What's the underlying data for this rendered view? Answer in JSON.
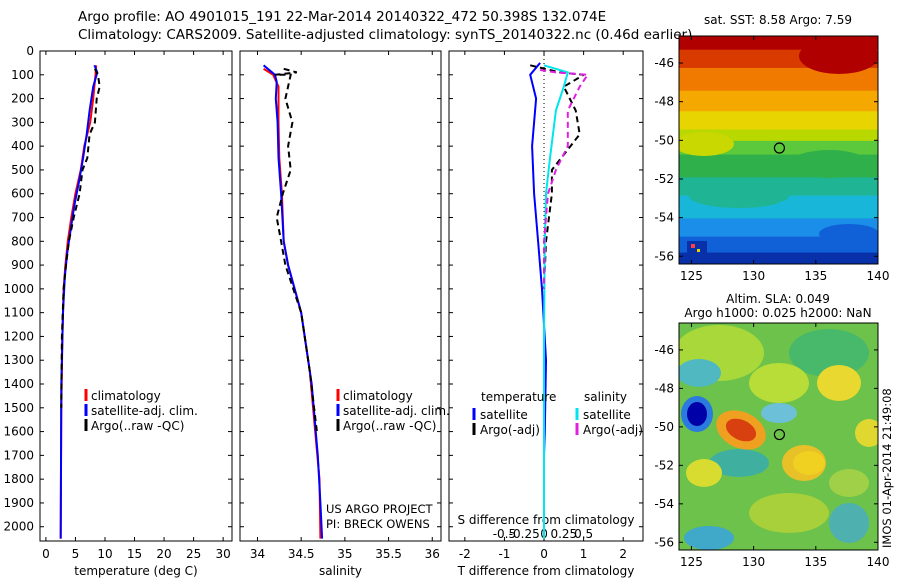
{
  "header": {
    "line1": "Argo profile: AO 4901015_191 22-Mar-2014 20140322_472 50.398S 132.074E",
    "line2": "Climatology: CARS2009. Satellite-adjusted climatology: synTS_20140322.nc (0.46d earlier)"
  },
  "colors": {
    "climatology": "#ff0000",
    "satellite": "#0000ff",
    "argo": "#000000",
    "sal_satellite": "#00e5ee",
    "sal_argo": "#e020e0"
  },
  "depth_ticks": [
    0,
    100,
    200,
    300,
    400,
    500,
    600,
    700,
    800,
    900,
    1000,
    1100,
    1200,
    1300,
    1400,
    1500,
    1600,
    1700,
    1800,
    1900,
    2000
  ],
  "chart_data": [
    {
      "type": "line",
      "xlabel": "temperature (deg C)",
      "xticks": [
        0,
        5,
        10,
        15,
        20,
        25,
        30
      ],
      "xlim": [
        -1,
        31.5
      ],
      "ylim": [
        2060,
        0
      ],
      "legend": [
        "climatology",
        "satellite-adj. clim.",
        "Argo(..raw -QC)"
      ],
      "series": [
        {
          "name": "climatology",
          "color": "#ff0000",
          "points": [
            [
              8.5,
              60
            ],
            [
              8.4,
              100
            ],
            [
              8.0,
              200
            ],
            [
              7.5,
              300
            ],
            [
              6.5,
              400
            ],
            [
              5.9,
              500
            ],
            [
              5.0,
              600
            ],
            [
              4.3,
              700
            ],
            [
              3.7,
              800
            ],
            [
              3.3,
              900
            ],
            [
              3.0,
              1000
            ],
            [
              2.8,
              1200
            ],
            [
              2.6,
              1500
            ],
            [
              2.5,
              2050
            ]
          ]
        },
        {
          "name": "satellite-adj. clim.",
          "color": "#0000ff",
          "points": [
            [
              8.2,
              60
            ],
            [
              8.7,
              90
            ],
            [
              8.0,
              150
            ],
            [
              7.4,
              250
            ],
            [
              6.9,
              350
            ],
            [
              6.3,
              450
            ],
            [
              5.6,
              550
            ],
            [
              4.8,
              650
            ],
            [
              4.2,
              750
            ],
            [
              3.6,
              850
            ],
            [
              3.2,
              950
            ],
            [
              2.9,
              1100
            ],
            [
              2.6,
              1400
            ],
            [
              2.5,
              2050
            ]
          ]
        },
        {
          "name": "Argo(..raw -QC)",
          "color": "#000000",
          "dash": true,
          "points": [
            [
              8.3,
              75
            ],
            [
              8.8,
              100
            ],
            [
              9.1,
              150
            ],
            [
              8.6,
              200
            ],
            [
              8.3,
              300
            ],
            [
              7.4,
              350
            ],
            [
              7.0,
              450
            ],
            [
              6.2,
              500
            ],
            [
              5.7,
              600
            ],
            [
              4.7,
              700
            ],
            [
              3.9,
              800
            ],
            [
              3.4,
              900
            ],
            [
              3.0,
              1000
            ],
            [
              2.7,
              1200
            ],
            [
              2.6,
              1500
            ]
          ]
        }
      ]
    },
    {
      "type": "line",
      "xlabel": "salinity",
      "xticks": [
        34,
        34.5,
        35,
        35.5,
        36
      ],
      "xlim": [
        33.8,
        36.1
      ],
      "ylim": [
        2060,
        0
      ],
      "legend": [
        "climatology",
        "satellite-adj. clim.",
        "Argo(..raw -QC)"
      ],
      "annotations": [
        "US ARGO PROJECT",
        "PI: BRECK OWENS"
      ],
      "series": [
        {
          "name": "climatology",
          "color": "#ff0000",
          "points": [
            [
              34.07,
              75
            ],
            [
              34.18,
              100
            ],
            [
              34.24,
              150
            ],
            [
              34.24,
              300
            ],
            [
              34.25,
              450
            ],
            [
              34.28,
              600
            ],
            [
              34.3,
              800
            ],
            [
              34.35,
              900
            ],
            [
              34.5,
              1100
            ],
            [
              34.6,
              1350
            ],
            [
              34.66,
              1600
            ],
            [
              34.71,
              1800
            ],
            [
              34.72,
              2050
            ]
          ]
        },
        {
          "name": "satellite-adj. clim.",
          "color": "#0000ff",
          "points": [
            [
              34.07,
              60
            ],
            [
              34.2,
              100
            ],
            [
              34.22,
              130
            ],
            [
              34.21,
              200
            ],
            [
              34.23,
              300
            ],
            [
              34.24,
              450
            ],
            [
              34.27,
              600
            ],
            [
              34.3,
              800
            ],
            [
              34.35,
              900
            ],
            [
              34.5,
              1100
            ],
            [
              34.62,
              1400
            ],
            [
              34.69,
              1700
            ],
            [
              34.72,
              1900
            ],
            [
              34.74,
              2050
            ]
          ]
        },
        {
          "name": "Argo(..raw -QC)",
          "color": "#000000",
          "dash": true,
          "points": [
            [
              34.3,
              75
            ],
            [
              34.45,
              90
            ],
            [
              34.2,
              100
            ],
            [
              34.38,
              100
            ],
            [
              34.32,
              200
            ],
            [
              34.4,
              300
            ],
            [
              34.35,
              400
            ],
            [
              34.38,
              500
            ],
            [
              34.29,
              600
            ],
            [
              34.22,
              700
            ],
            [
              34.27,
              800
            ],
            [
              34.32,
              900
            ],
            [
              34.5,
              1100
            ],
            [
              34.6,
              1350
            ],
            [
              34.68,
              1600
            ]
          ]
        }
      ]
    },
    {
      "type": "line",
      "xlabel": "T difference from climatology",
      "xticks": [
        -2,
        -1,
        0,
        1,
        2
      ],
      "xlim": [
        -2.4,
        2.5
      ],
      "top_axis_label": "S difference from climatology",
      "top_xticks": [
        "-0.5",
        "-0.25",
        "0",
        "0.25",
        "0.5"
      ],
      "ylim": [
        2060,
        0
      ],
      "legend": [
        "temperature",
        "satellite",
        "Argo(-adj)",
        "salinity",
        "satellite",
        "Argo(-adj)"
      ],
      "series": [
        {
          "name": "satellite",
          "group": "temperature",
          "color": "#0000ff",
          "points": [
            [
              -0.1,
              50
            ],
            [
              -0.35,
              100
            ],
            [
              -0.2,
              200
            ],
            [
              -0.3,
              400
            ],
            [
              -0.25,
              600
            ],
            [
              -0.15,
              800
            ],
            [
              -0.05,
              1000
            ],
            [
              0.05,
              1300
            ],
            [
              0.02,
              1600
            ],
            [
              0.0,
              1700
            ]
          ]
        },
        {
          "name": "Argo(-adj)",
          "group": "temperature",
          "color": "#000000",
          "dash": true,
          "points": [
            [
              -0.35,
              60
            ],
            [
              0.4,
              90
            ],
            [
              1.0,
              100
            ],
            [
              0.5,
              150
            ],
            [
              0.8,
              250
            ],
            [
              0.9,
              350
            ],
            [
              0.2,
              500
            ],
            [
              0.2,
              600
            ],
            [
              0.05,
              800
            ],
            [
              0.0,
              1000
            ]
          ]
        },
        {
          "name": "satellite",
          "group": "salinity",
          "color": "#00e5ee",
          "points": [
            [
              0.0,
              60
            ],
            [
              0.6,
              90
            ],
            [
              0.5,
              150
            ],
            [
              0.3,
              250
            ],
            [
              0.15,
              450
            ],
            [
              0.05,
              600
            ],
            [
              0.02,
              800
            ],
            [
              0.0,
              1200
            ],
            [
              0.0,
              2050
            ]
          ]
        },
        {
          "name": "Argo(-adj)",
          "group": "salinity",
          "color": "#e020e0",
          "dash": true,
          "points": [
            [
              -0.1,
              80
            ],
            [
              0.3,
              90
            ],
            [
              1.1,
              100
            ],
            [
              0.9,
              150
            ],
            [
              0.6,
              250
            ],
            [
              0.6,
              400
            ],
            [
              0.3,
              500
            ],
            [
              0.1,
              600
            ],
            [
              0.0,
              800
            ],
            [
              0.0,
              1000
            ]
          ]
        }
      ]
    }
  ],
  "map_sst": {
    "title": "sat. SST: 8.58 Argo: 7.59",
    "yticks": [
      "-46",
      "-48",
      "-50",
      "-52",
      "-54",
      "-56"
    ],
    "xticks": [
      "125",
      "130",
      "135",
      "140"
    ]
  },
  "map_sla": {
    "title_line1": "Altim. SLA: 0.049",
    "title_line2": "Argo h1000: 0.025 h2000: NaN",
    "yticks": [
      "-46",
      "-48",
      "-50",
      "-52",
      "-54",
      "-56"
    ],
    "xticks": [
      "125",
      "130",
      "135",
      "140"
    ]
  },
  "watermark": "IMOS 01-Apr-2014 21:49:08"
}
